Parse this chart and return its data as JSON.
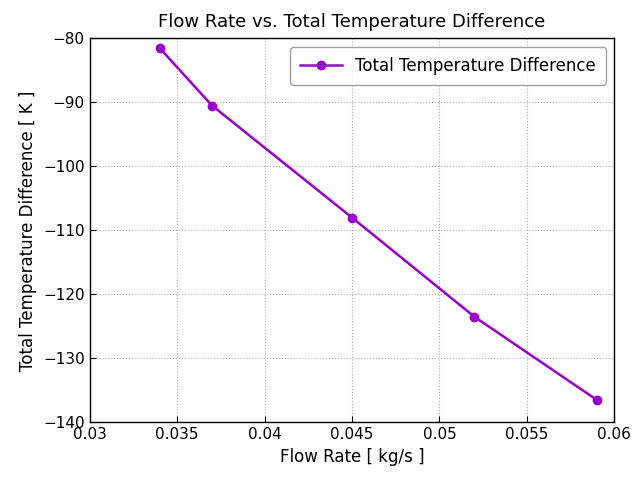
{
  "x": [
    0.034,
    0.037,
    0.045,
    0.052,
    0.059
  ],
  "y": [
    -81.5,
    -90.5,
    -108.0,
    -123.5,
    -136.5
  ],
  "color": "#9900cc",
  "marker": "o",
  "marker_size": 6,
  "line_width": 1.8,
  "title": "Flow Rate vs. Total Temperature Difference",
  "xlabel": "Flow Rate [ kg/s ]",
  "ylabel": "Total Temperature Difference [ K ]",
  "legend_label": "Total Temperature Difference",
  "xlim": [
    0.03,
    0.06
  ],
  "ylim": [
    -140,
    -80
  ],
  "xticks": [
    0.03,
    0.035,
    0.04,
    0.045,
    0.05,
    0.055,
    0.06
  ],
  "yticks": [
    -140,
    -130,
    -120,
    -110,
    -100,
    -90,
    -80
  ],
  "title_fontsize": 13,
  "label_fontsize": 12,
  "tick_fontsize": 11,
  "legend_fontsize": 12,
  "background_color": "#ffffff",
  "grid_color": "#aaaaaa",
  "grid_linestyle": "dotted"
}
